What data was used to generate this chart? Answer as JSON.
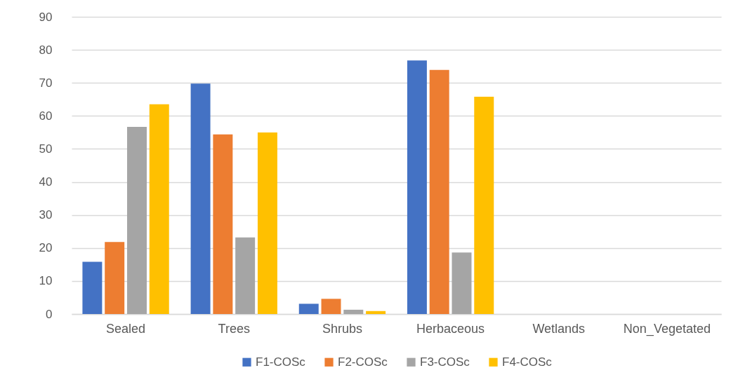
{
  "chart_data": {
    "type": "bar",
    "categories": [
      "Sealed",
      "Trees",
      "Shrubs",
      "Herbaceous",
      "Wetlands",
      "Non_Vegetated"
    ],
    "series": [
      {
        "name": "F1-COSc",
        "color": "#4472c4",
        "values": [
          15.8,
          69.8,
          3.1,
          76.8,
          0,
          0
        ]
      },
      {
        "name": "F2-COSc",
        "color": "#ed7d31",
        "values": [
          21.8,
          54.4,
          4.6,
          73.9,
          0,
          0
        ]
      },
      {
        "name": "F3-COSc",
        "color": "#a5a5a5",
        "values": [
          56.7,
          23.2,
          1.3,
          18.6,
          0,
          0
        ]
      },
      {
        "name": "F4-COSc",
        "color": "#ffc000",
        "values": [
          63.5,
          55.0,
          0.9,
          65.8,
          0,
          0
        ]
      }
    ],
    "ylim": [
      0,
      90
    ],
    "yticks": [
      0,
      10,
      20,
      30,
      40,
      50,
      60,
      70,
      80,
      90
    ],
    "grid": "y",
    "legend": "bottom"
  }
}
